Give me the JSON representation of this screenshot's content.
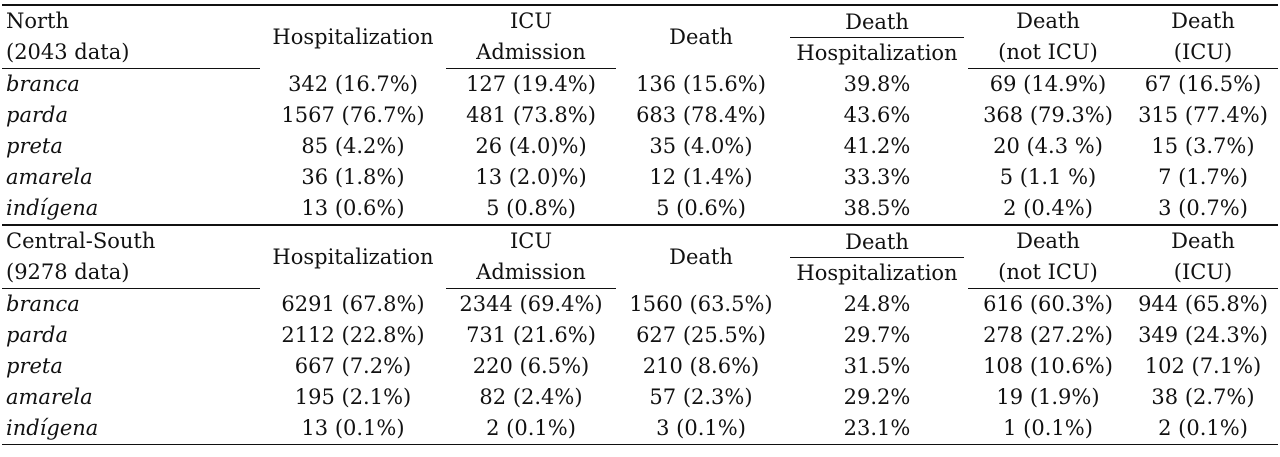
{
  "sections": [
    {
      "region_label": "North",
      "region_count": "(2043 data)",
      "headers": {
        "hosp": "Hospitalization",
        "icu_line1": "ICU",
        "icu_line2": "Admission",
        "death": "Death",
        "ratio_num": "Death",
        "ratio_den": "Hospitalization",
        "dnicu_line1": "Death",
        "dnicu_line2": "(not ICU)",
        "dicu_line1": "Death",
        "dicu_line2": "(ICU)"
      },
      "rows": [
        {
          "group": "branca",
          "hosp": "342 (16.7%)",
          "icu": "127 (19.4%)",
          "death": "136 (15.6%)",
          "ratio": "39.8%",
          "dnicu": "69 (14.9%)",
          "dicu": "67 (16.5%)"
        },
        {
          "group": "parda",
          "hosp": "1567 (76.7%)",
          "icu": "481 (73.8%)",
          "death": "683 (78.4%)",
          "ratio": "43.6%",
          "dnicu": "368 (79.3%)",
          "dicu": "315 (77.4%)"
        },
        {
          "group": "preta",
          "hosp": "85 (4.2%)",
          "icu": "26 (4.0)%)",
          "death": "35 (4.0%)",
          "ratio": "41.2%",
          "dnicu": "20 (4.3 %)",
          "dicu": "15 (3.7%)"
        },
        {
          "group": "amarela",
          "hosp": "36 (1.8%)",
          "icu": "13 (2.0)%)",
          "death": "12 (1.4%)",
          "ratio": "33.3%",
          "dnicu": "5 (1.1 %)",
          "dicu": "7 (1.7%)"
        },
        {
          "group": "indígena",
          "hosp": "13 (0.6%)",
          "icu": "5 (0.8%)",
          "death": "5 (0.6%)",
          "ratio": "38.5%",
          "dnicu": "2 (0.4%)",
          "dicu": "3 (0.7%)"
        }
      ]
    },
    {
      "region_label": "Central-South",
      "region_count": "(9278 data)",
      "headers": {
        "hosp": "Hospitalization",
        "icu_line1": "ICU",
        "icu_line2": "Admission",
        "death": "Death",
        "ratio_num": "Death",
        "ratio_den": "Hospitalization",
        "dnicu_line1": "Death",
        "dnicu_line2": "(not ICU)",
        "dicu_line1": "Death",
        "dicu_line2": "(ICU)"
      },
      "rows": [
        {
          "group": "branca",
          "hosp": "6291 (67.8%)",
          "icu": "2344 (69.4%)",
          "death": "1560 (63.5%)",
          "ratio": "24.8%",
          "dnicu": "616 (60.3%)",
          "dicu": "944 (65.8%)"
        },
        {
          "group": "parda",
          "hosp": "2112 (22.8%)",
          "icu": "731 (21.6%)",
          "death": "627 (25.5%)",
          "ratio": "29.7%",
          "dnicu": "278 (27.2%)",
          "dicu": "349 (24.3%)"
        },
        {
          "group": "preta",
          "hosp": "667 (7.2%)",
          "icu": "220 (6.5%)",
          "death": "210 (8.6%)",
          "ratio": "31.5%",
          "dnicu": "108 (10.6%)",
          "dicu": "102 (7.1%)"
        },
        {
          "group": "amarela",
          "hosp": "195 (2.1%)",
          "icu": "82 (2.4%)",
          "death": "57 (2.3%)",
          "ratio": "29.2%",
          "dnicu": "19 (1.9%)",
          "dicu": "38 (2.7%)"
        },
        {
          "group": "indígena",
          "hosp": "13 (0.1%)",
          "icu": "2 (0.1%)",
          "death": "3 (0.1%)",
          "ratio": "23.1%",
          "dnicu": "1 (0.1%)",
          "dicu": "2 (0.1%)"
        }
      ]
    }
  ]
}
